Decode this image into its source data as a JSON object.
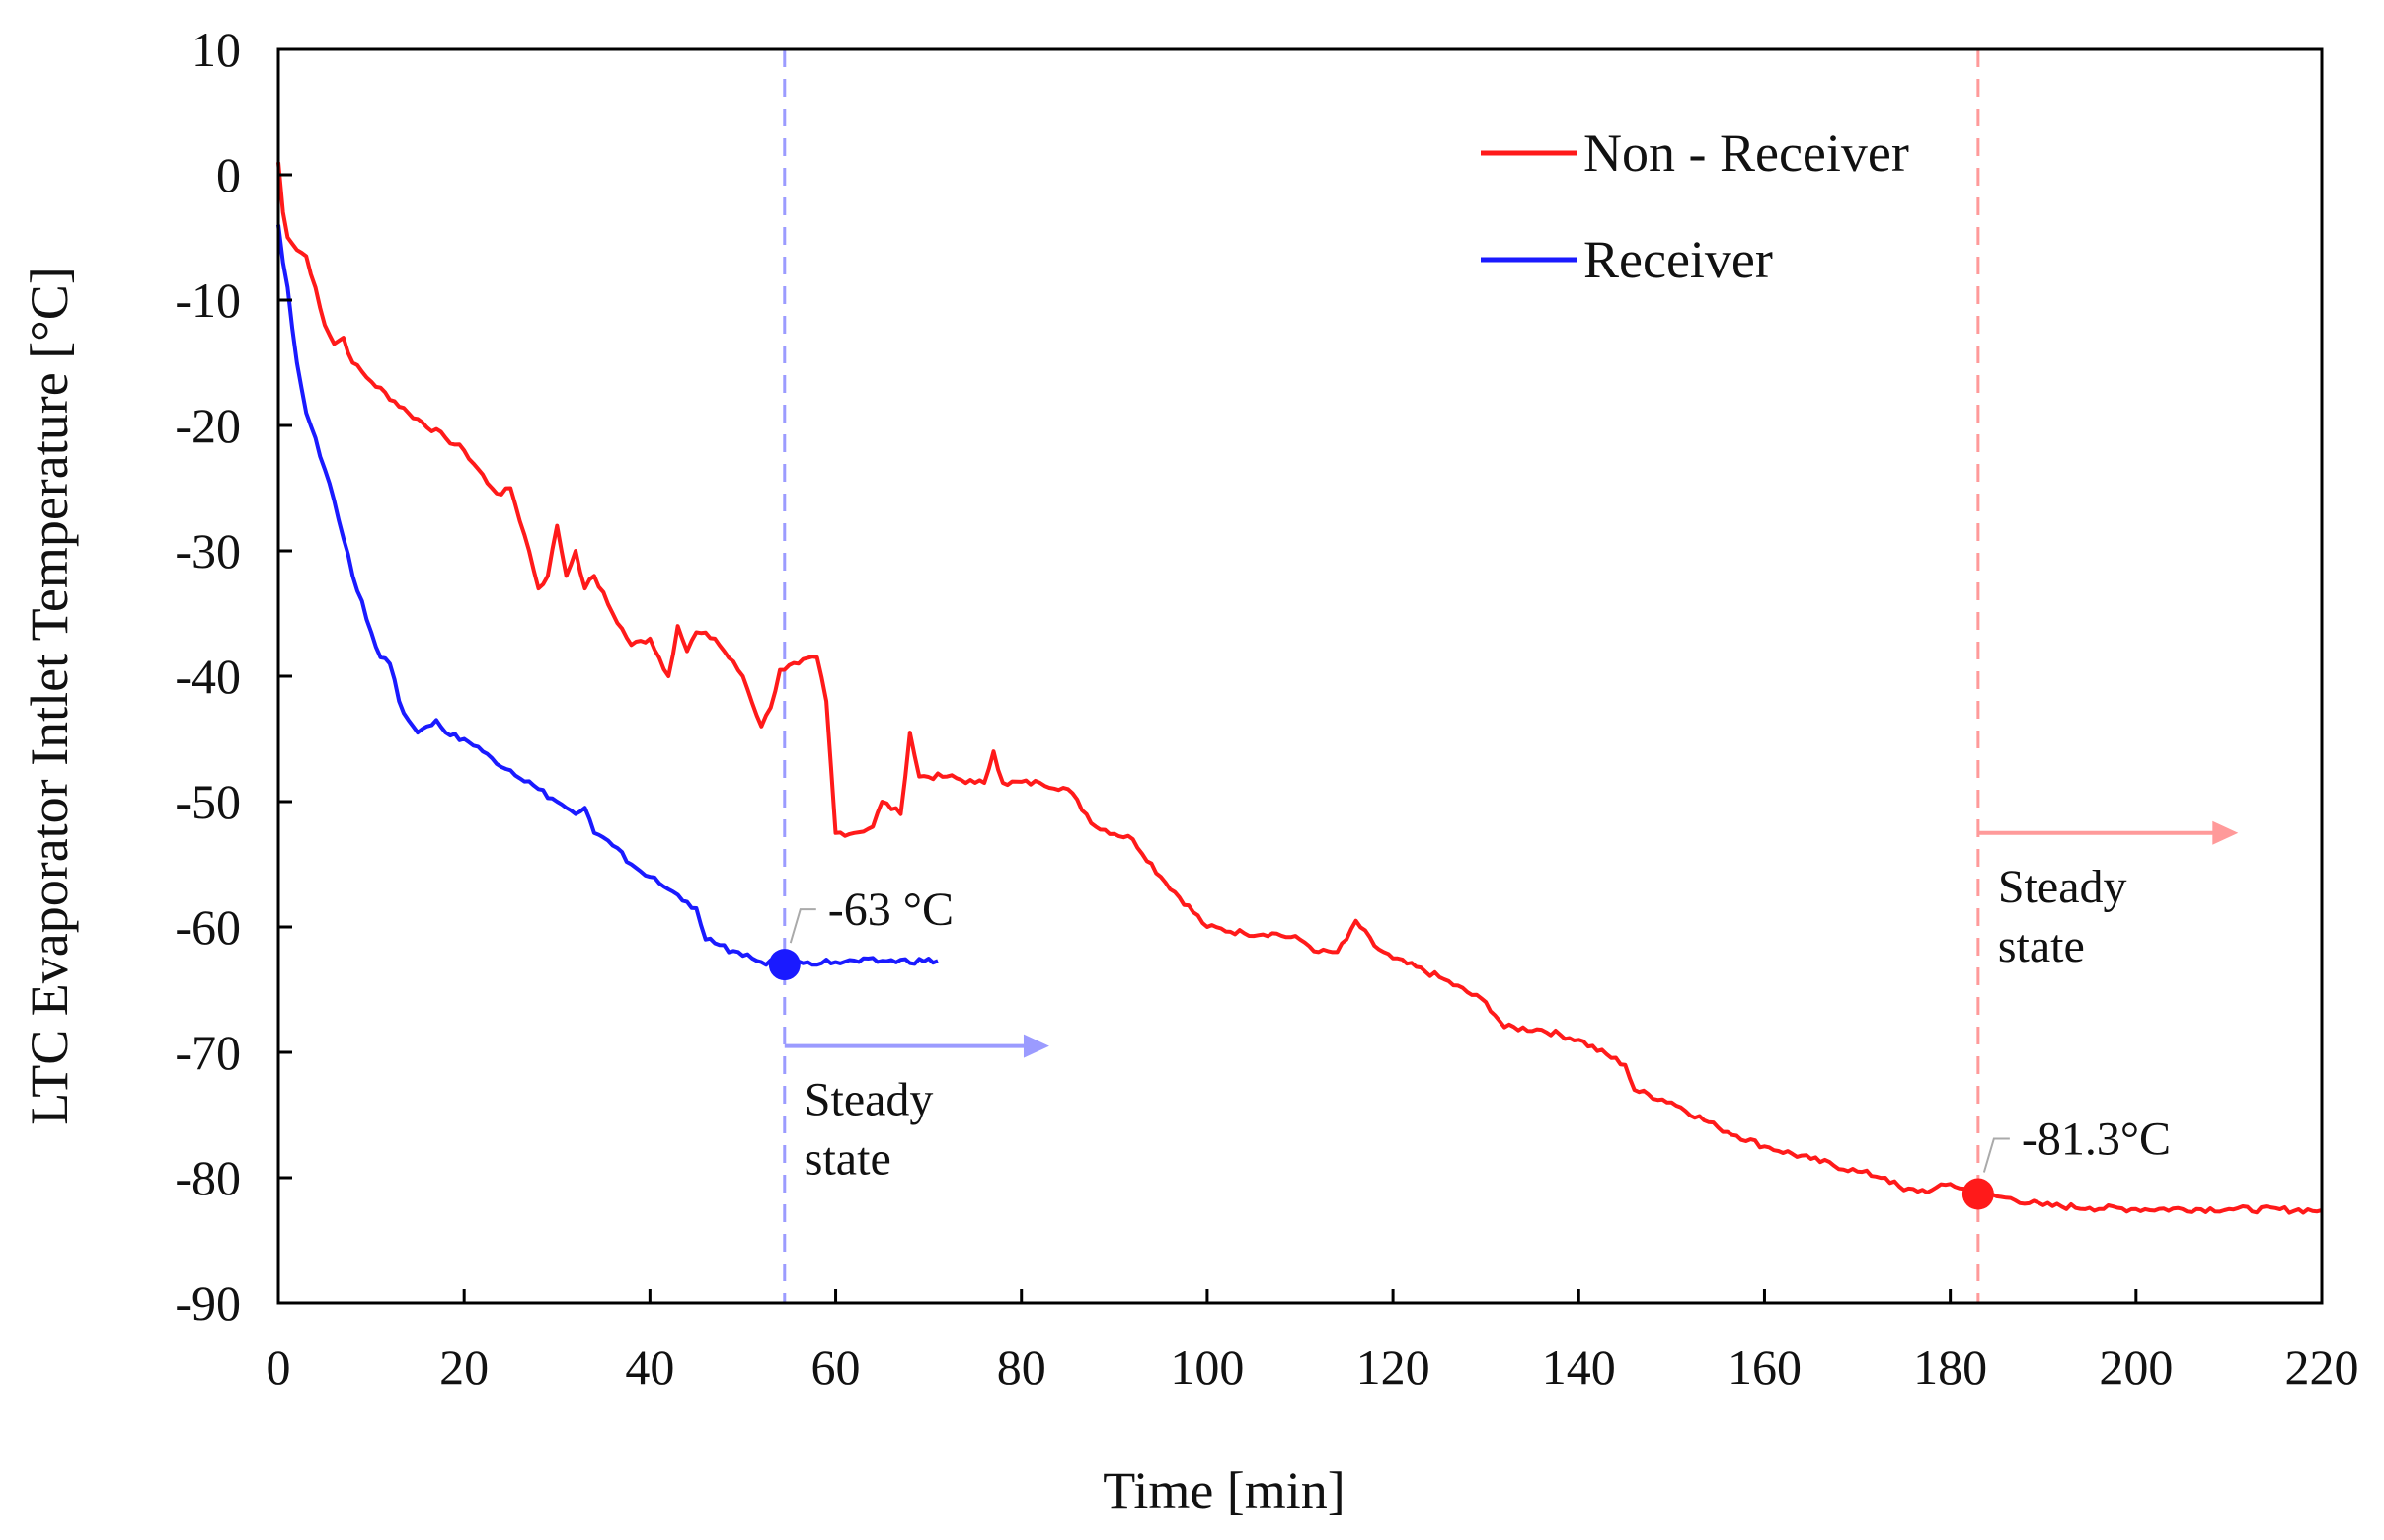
{
  "chart_data": {
    "type": "line",
    "title": "",
    "xlabel": "Time [min]",
    "ylabel": "LTC Evaporator Intlet Temperature [°C]",
    "xlim": [
      0,
      220
    ],
    "ylim": [
      -90,
      10
    ],
    "xticks": [
      0,
      20,
      40,
      60,
      80,
      100,
      120,
      140,
      160,
      180,
      200,
      220
    ],
    "yticks": [
      10,
      0,
      -10,
      -20,
      -30,
      -40,
      -50,
      -60,
      -70,
      -80,
      -90
    ],
    "grid": false,
    "legend_position": "top-right",
    "series": [
      {
        "name": "Non - Receiver",
        "color": "#ff1a1a",
        "points": [
          [
            0,
            1
          ],
          [
            0.5,
            -3
          ],
          [
            1,
            -5
          ],
          [
            2,
            -6
          ],
          [
            3,
            -6.5
          ],
          [
            4,
            -9
          ],
          [
            5,
            -12
          ],
          [
            6,
            -13.5
          ],
          [
            7,
            -13
          ],
          [
            8,
            -15
          ],
          [
            10,
            -16.5
          ],
          [
            14,
            -19
          ],
          [
            18,
            -21
          ],
          [
            20,
            -22
          ],
          [
            23,
            -25
          ],
          [
            24,
            -25.5
          ],
          [
            25,
            -25
          ],
          [
            27,
            -30
          ],
          [
            28,
            -33
          ],
          [
            29,
            -32
          ],
          [
            30,
            -28
          ],
          [
            31,
            -32
          ],
          [
            32,
            -30
          ],
          [
            33,
            -33
          ],
          [
            34,
            -32
          ],
          [
            36,
            -35
          ],
          [
            38,
            -37.5
          ],
          [
            40,
            -37
          ],
          [
            42,
            -40
          ],
          [
            43,
            -36
          ],
          [
            44,
            -38
          ],
          [
            45,
            -36.5
          ],
          [
            47,
            -37
          ],
          [
            50,
            -40
          ],
          [
            52,
            -44
          ],
          [
            53,
            -42.5
          ],
          [
            54,
            -39.5
          ],
          [
            56,
            -39
          ],
          [
            58,
            -38.5
          ],
          [
            59,
            -42
          ],
          [
            60,
            -52.5
          ],
          [
            62,
            -52.5
          ],
          [
            64,
            -52
          ],
          [
            65,
            -50
          ],
          [
            67,
            -51
          ],
          [
            68,
            -44.5
          ],
          [
            69,
            -48
          ],
          [
            72,
            -48
          ],
          [
            75,
            -48.5
          ],
          [
            76,
            -48.5
          ],
          [
            77,
            -46
          ],
          [
            78,
            -48.5
          ],
          [
            82,
            -48.5
          ],
          [
            85,
            -49
          ],
          [
            88,
            -52
          ],
          [
            92,
            -53
          ],
          [
            95,
            -56
          ],
          [
            100,
            -60
          ],
          [
            104,
            -60.5
          ],
          [
            107,
            -60.5
          ],
          [
            110,
            -61
          ],
          [
            112,
            -62
          ],
          [
            114,
            -62
          ],
          [
            115,
            -61
          ],
          [
            116,
            -59.5
          ],
          [
            118,
            -61.5
          ],
          [
            120,
            -62.5
          ],
          [
            125,
            -64
          ],
          [
            130,
            -66
          ],
          [
            132,
            -68
          ],
          [
            136,
            -68.2
          ],
          [
            140,
            -69
          ],
          [
            145,
            -71
          ],
          [
            146,
            -73
          ],
          [
            150,
            -74
          ],
          [
            155,
            -76
          ],
          [
            160,
            -77.5
          ],
          [
            165,
            -78.5
          ],
          [
            170,
            -79.5
          ],
          [
            173,
            -80
          ],
          [
            175,
            -81
          ],
          [
            178,
            -81
          ],
          [
            180,
            -80.5
          ],
          [
            183,
            -81.3
          ],
          [
            186,
            -81.6
          ],
          [
            190,
            -82.2
          ],
          [
            195,
            -82.4
          ],
          [
            200,
            -82.5
          ],
          [
            210,
            -82.5
          ],
          [
            220,
            -82.6
          ]
        ]
      },
      {
        "name": "Receiver",
        "color": "#1a1aff",
        "points": [
          [
            0,
            -4
          ],
          [
            0.5,
            -7
          ],
          [
            1,
            -9
          ],
          [
            2,
            -15
          ],
          [
            3,
            -19
          ],
          [
            4,
            -21
          ],
          [
            5,
            -23.5
          ],
          [
            6,
            -26
          ],
          [
            7,
            -29
          ],
          [
            8,
            -32
          ],
          [
            9,
            -34
          ],
          [
            10,
            -36.5
          ],
          [
            11,
            -38.5
          ],
          [
            12,
            -39
          ],
          [
            13,
            -42
          ],
          [
            14,
            -43.5
          ],
          [
            15,
            -44.5
          ],
          [
            16,
            -44
          ],
          [
            17,
            -43.5
          ],
          [
            18,
            -44.5
          ],
          [
            20,
            -45
          ],
          [
            22,
            -46
          ],
          [
            25,
            -47.5
          ],
          [
            28,
            -49
          ],
          [
            30,
            -50
          ],
          [
            31,
            -50.5
          ],
          [
            32,
            -51
          ],
          [
            33,
            -50.5
          ],
          [
            34,
            -52.5
          ],
          [
            36,
            -53.5
          ],
          [
            38,
            -55
          ],
          [
            40,
            -56
          ],
          [
            42,
            -57
          ],
          [
            44,
            -58
          ],
          [
            45,
            -58.5
          ],
          [
            46,
            -61
          ],
          [
            47,
            -61.3
          ],
          [
            50,
            -62.3
          ],
          [
            52,
            -62.8
          ],
          [
            54.5,
            -63
          ],
          [
            57,
            -62.8
          ],
          [
            60,
            -62.8
          ],
          [
            65,
            -62.7
          ],
          [
            71,
            -62.7
          ]
        ]
      }
    ],
    "annotations": [
      {
        "label": "-63 °C",
        "x": 54.5,
        "y": -63,
        "color": "#1a1aff"
      },
      {
        "label": "-81.3°C",
        "x": 183,
        "y": -81.3,
        "color": "#ff1a1a"
      }
    ],
    "steady_state": [
      {
        "x": 54.5,
        "arrow_to_x": 83,
        "arrow_y": -69.5,
        "label_line1": "Steady",
        "label_line2": "state",
        "color": "#9b9bff"
      },
      {
        "x": 183,
        "arrow_to_x": 211,
        "arrow_y": -52.5,
        "label_line1": "Steady",
        "label_line2": "state",
        "color": "#ff9a9a"
      }
    ]
  }
}
